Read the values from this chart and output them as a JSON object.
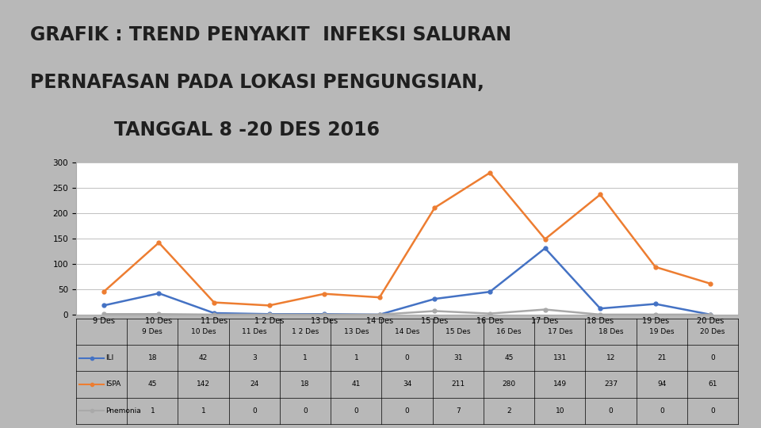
{
  "title_line1": "GRAFIK : TREND PENYAKIT  INFEKSI SALURAN",
  "title_line2": "PERNAFASAN PADA LOKASI PENGUNGSIAN,",
  "title_line3": "        TANGGAL 8 -20 DES 2016",
  "categories": [
    "9 Des",
    "10 Des",
    "11 Des",
    "1 2 Des",
    "13 Des",
    "14 Des",
    "15 Des",
    "16 Des",
    "17 Des",
    "18 Des",
    "19 Des",
    "20 Des"
  ],
  "ILI": [
    18,
    42,
    3,
    1,
    1,
    0,
    31,
    45,
    131,
    12,
    21,
    0
  ],
  "ISPA": [
    45,
    142,
    24,
    18,
    41,
    34,
    211,
    280,
    149,
    237,
    94,
    61
  ],
  "Pnemonia": [
    1,
    1,
    0,
    0,
    0,
    0,
    7,
    2,
    10,
    0,
    0,
    0
  ],
  "ILI_color": "#4472C4",
  "ISPA_color": "#ED7D31",
  "Pnemonia_color": "#A9A9A9",
  "ylim": [
    0,
    300
  ],
  "yticks": [
    0,
    50,
    100,
    150,
    200,
    250,
    300
  ],
  "chart_bg": "#FFFFFF",
  "title_color": "#1F1F1F",
  "title_fontsize": 17,
  "grid_color": "#C0C0C0",
  "outer_bg": "#B8B8B8"
}
